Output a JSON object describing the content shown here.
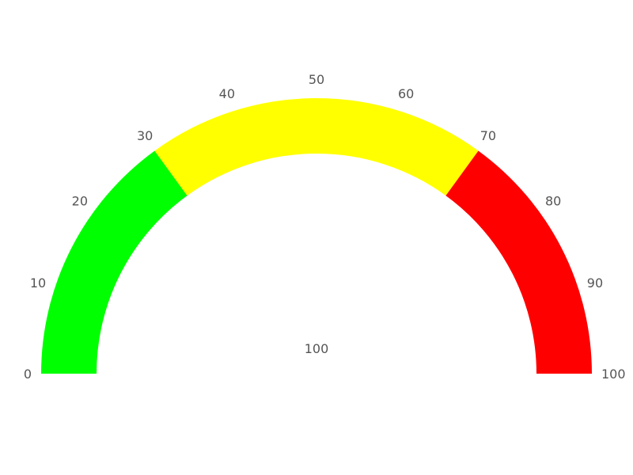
{
  "chart_data": {
    "type": "gauge",
    "title": "",
    "min": 0,
    "max": 100,
    "value": 100,
    "value_label": "100",
    "ticks": [
      0,
      10,
      20,
      30,
      40,
      50,
      60,
      70,
      80,
      90,
      100
    ],
    "bands": [
      {
        "from": 0,
        "to": 30,
        "color": "#00ff00"
      },
      {
        "from": 30,
        "to": 70,
        "color": "#ffff00"
      },
      {
        "from": 70,
        "to": 100,
        "color": "#ff0000"
      }
    ]
  }
}
